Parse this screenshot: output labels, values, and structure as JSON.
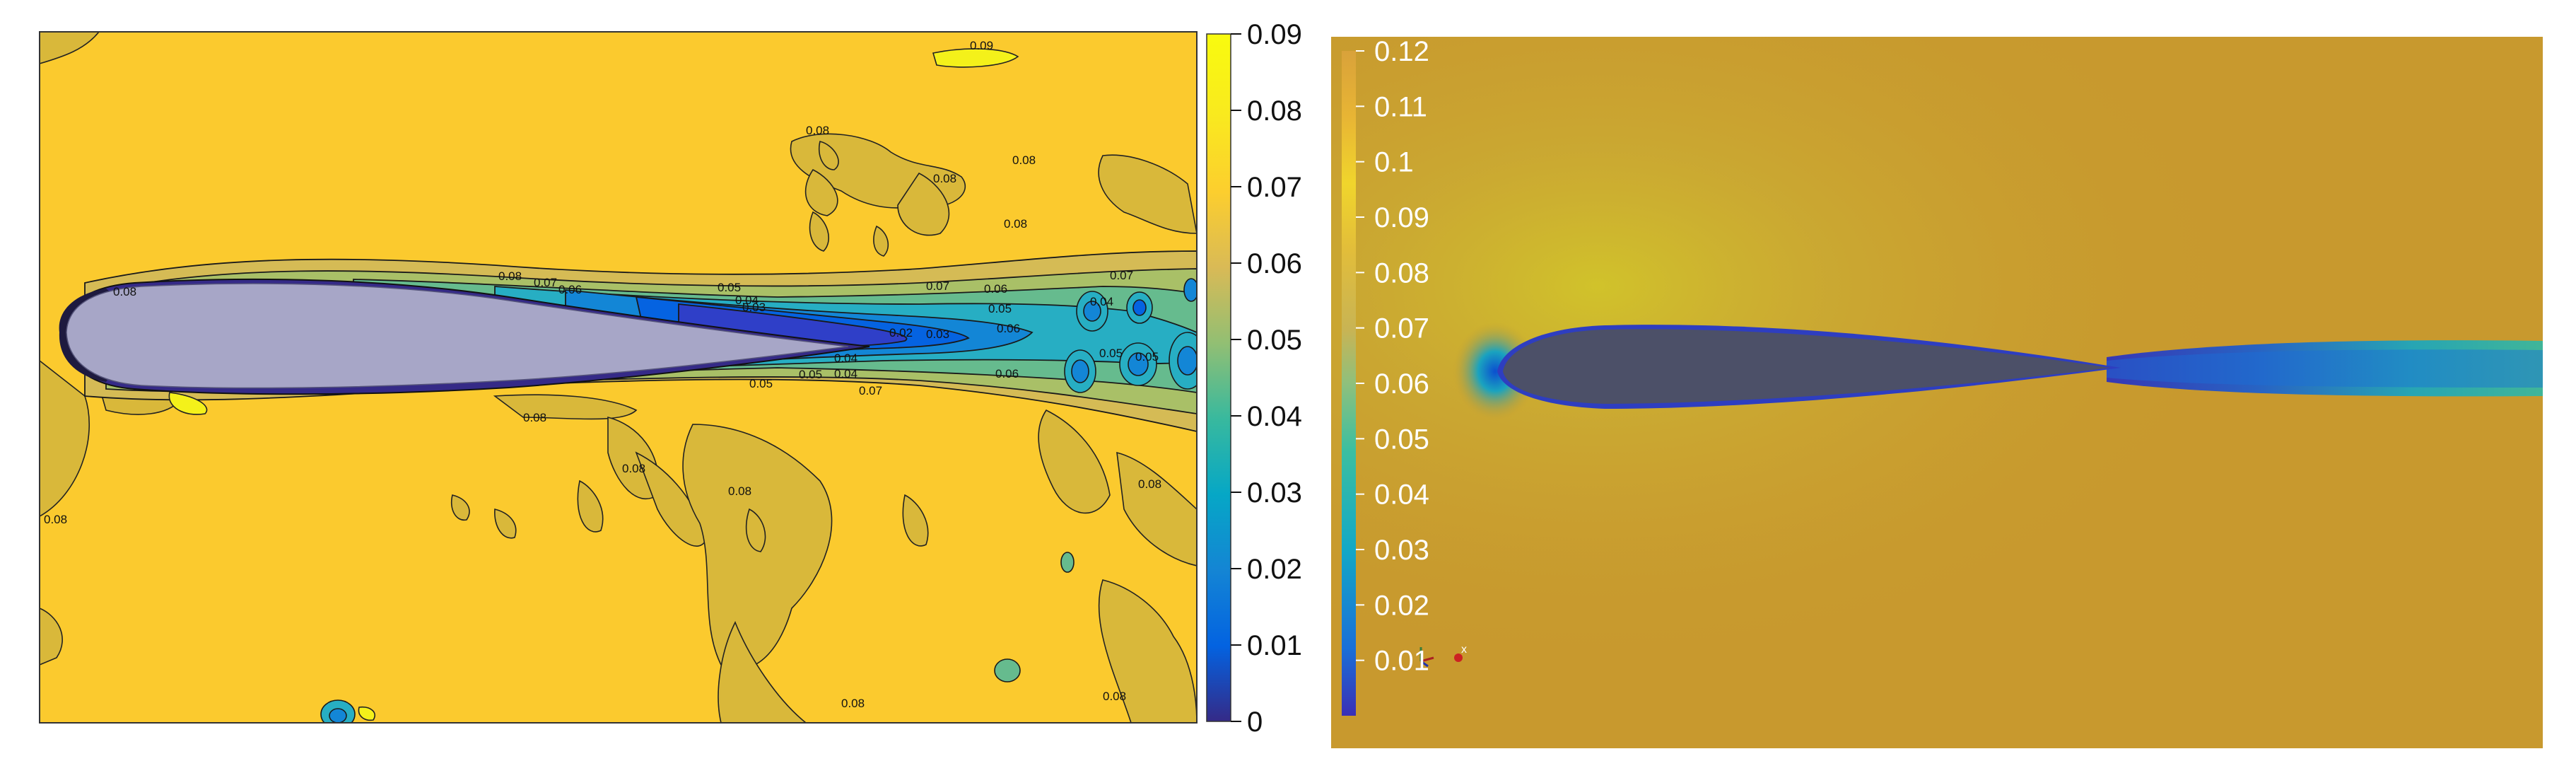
{
  "figure": {
    "left_panel": {
      "kind": "filled-contour",
      "colormap": "parula",
      "colorbar": {
        "ticks": [
          "0",
          "0.01",
          "0.02",
          "0.03",
          "0.04",
          "0.05",
          "0.06",
          "0.07",
          "0.08",
          "0.09"
        ],
        "range": [
          0,
          0.09
        ]
      },
      "contour_labels": [
        "0.09",
        "0.08",
        "0.08",
        "0.08",
        "0.08",
        "0.08",
        "0.07",
        "0.06",
        "0.05",
        "0.04",
        "0.03",
        "0.02",
        "0.08",
        "0.07",
        "0.06",
        "0.05",
        "0.07",
        "0.06",
        "0.05",
        "0.04",
        "0.03",
        "0.07",
        "0.06",
        "0.05",
        "0.04",
        "0.05",
        "0.04",
        "0.05",
        "0.08",
        "0.08",
        "0.08",
        "0.08",
        "0.08",
        "0.08",
        "0.08"
      ],
      "colors": {
        "background": "#fbca2e",
        "airfoil": "#a7a6c7"
      }
    },
    "right_panel": {
      "kind": "rendered-field",
      "colormap": "parula",
      "colorbar": {
        "ticks": [
          "0.01",
          "0.02",
          "0.03",
          "0.04",
          "0.05",
          "0.06",
          "0.07",
          "0.08",
          "0.09",
          "0.1",
          "0.11",
          "0.12"
        ],
        "range": [
          0,
          0.12
        ]
      },
      "colors": {
        "background": "#c8992e",
        "airfoil": "#4c5068"
      }
    }
  },
  "chart_data": [
    {
      "type": "heatmap",
      "title": "",
      "xlabel": "",
      "ylabel": "",
      "colorbar_range": [
        0,
        0.09
      ],
      "colorbar_ticks": [
        0,
        0.01,
        0.02,
        0.03,
        0.04,
        0.05,
        0.06,
        0.07,
        0.08,
        0.09
      ],
      "contour_levels": [
        0.02,
        0.03,
        0.04,
        0.05,
        0.06,
        0.07,
        0.08,
        0.09
      ],
      "grid": false
    },
    {
      "type": "heatmap",
      "title": "",
      "xlabel": "",
      "ylabel": "",
      "colorbar_range": [
        0,
        0.12
      ],
      "colorbar_ticks": [
        0.01,
        0.02,
        0.03,
        0.04,
        0.05,
        0.06,
        0.07,
        0.08,
        0.09,
        0.1,
        0.11,
        0.12
      ],
      "grid": false
    }
  ]
}
